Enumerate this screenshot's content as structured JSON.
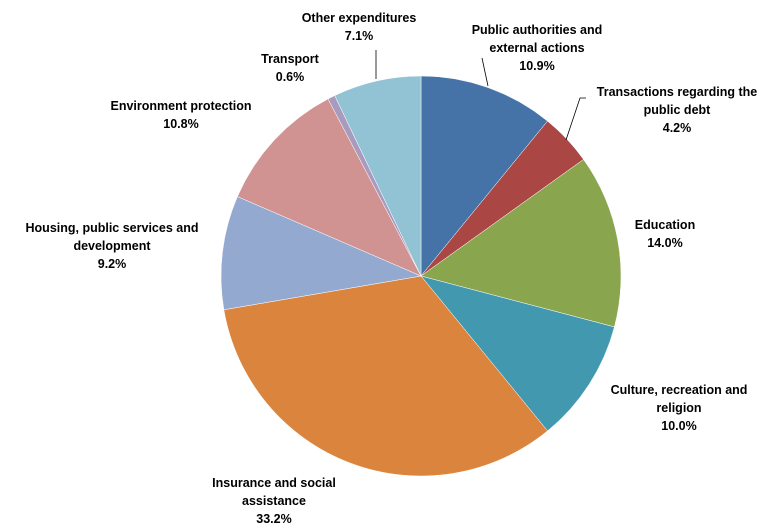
{
  "chart_data": {
    "type": "pie",
    "title": "",
    "legend": "none",
    "slices": [
      {
        "label_lines": [
          "Public authorities and",
          "external actions"
        ],
        "value_text": "10.9%",
        "value": 10.9,
        "color": "#4572A7"
      },
      {
        "label_lines": [
          "Transactions regarding the",
          "public debt"
        ],
        "value_text": "4.2%",
        "value": 4.2,
        "color": "#AA4643"
      },
      {
        "label_lines": [
          "Education"
        ],
        "value_text": "14.0%",
        "value": 14.0,
        "color": "#89A54E"
      },
      {
        "label_lines": [
          "Culture, recreation and",
          "religion"
        ],
        "value_text": "10.0%",
        "value": 10.0,
        "color": "#4198AF"
      },
      {
        "label_lines": [
          "Insurance and social",
          "assistance"
        ],
        "value_text": "33.2%",
        "value": 33.2,
        "color": "#DB843D"
      },
      {
        "label_lines": [
          "Housing, public services and",
          "development"
        ],
        "value_text": "9.2%",
        "value": 9.2,
        "color": "#93A9D0"
      },
      {
        "label_lines": [
          "Environment protection"
        ],
        "value_text": "10.8%",
        "value": 10.8,
        "color": "#D09392"
      },
      {
        "label_lines": [
          "Transport"
        ],
        "value_text": "0.6%",
        "value": 0.6,
        "color": "#A99BBD"
      },
      {
        "label_lines": [
          "Other expenditures"
        ],
        "value_text": "7.1%",
        "value": 7.1,
        "color": "#92C3D4"
      }
    ]
  }
}
